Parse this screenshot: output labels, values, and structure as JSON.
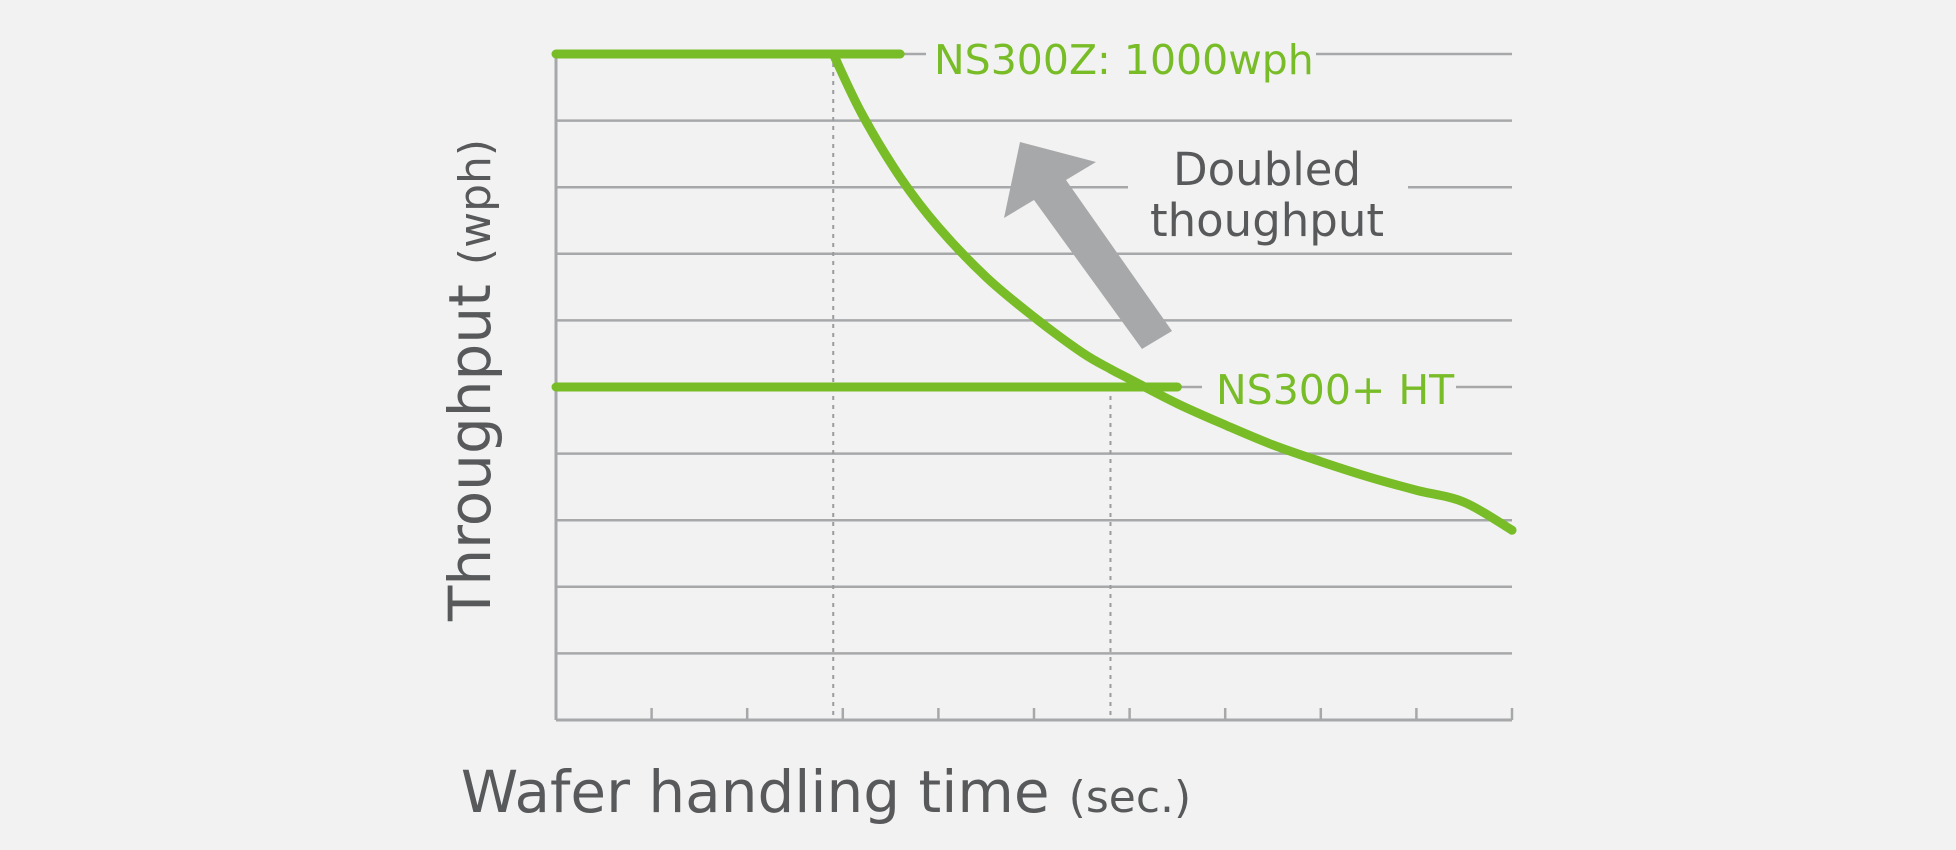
{
  "chart_data": {
    "type": "line",
    "xlabel": "Wafer handling time",
    "xlabel_unit": "(sec.)",
    "ylabel": "Throughput",
    "ylabel_unit": "(wph)",
    "xlim": [
      0,
      10
    ],
    "ylim": [
      0,
      1000
    ],
    "y_gridlines": [
      100,
      200,
      300,
      400,
      500,
      600,
      700,
      800,
      900,
      1000
    ],
    "x_ticks": [
      0,
      1,
      2,
      3,
      4,
      5,
      6,
      7,
      8,
      9,
      10
    ],
    "grid": "horizontal",
    "series": [
      {
        "name": "NS300Z: 1000wph",
        "color": "#78bc27",
        "kind": "level",
        "y": 1000,
        "x_range": [
          0,
          3.6
        ]
      },
      {
        "name": "NS300+ HT",
        "color": "#78bc27",
        "kind": "level",
        "y": 500,
        "x_range": [
          0,
          6.5
        ]
      },
      {
        "kind": "curve",
        "color": "#78bc27",
        "x": [
          2.9,
          3.2,
          3.6,
          4.0,
          4.5,
          5.0,
          5.5,
          5.8,
          6.0,
          6.5,
          7.0,
          7.5,
          8.0,
          8.5,
          9.0,
          9.5,
          10.0
        ],
        "y": [
          1000,
          910,
          815,
          740,
          665,
          605,
          552,
          527,
          512,
          475,
          443,
          413,
          388,
          365,
          345,
          327,
          285
        ]
      }
    ],
    "guides": [
      {
        "x": 2.9,
        "from_y": 0,
        "to_y": 1000
      },
      {
        "x": 5.8,
        "from_y": 0,
        "to_y": 500
      }
    ],
    "annotation": {
      "lines": [
        "Doubled",
        "thoughput"
      ],
      "arrow_color": "#a7a8aa"
    }
  }
}
